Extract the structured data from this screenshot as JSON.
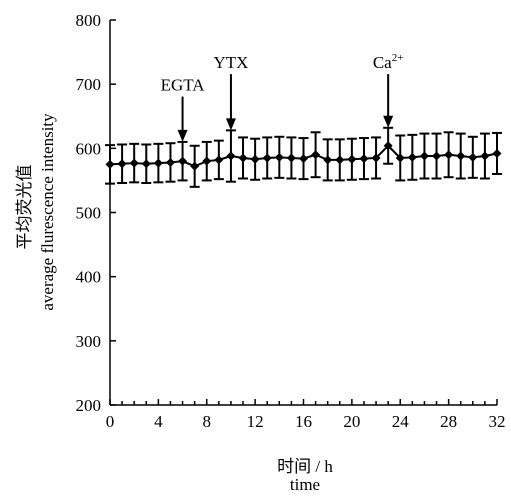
{
  "chart_data": {
    "type": "line",
    "ylabel_cn": "平均荧光值",
    "ylabel_en": "average flurescence intensity",
    "xlabel_cn": "时间 / h",
    "xlabel_en": "time",
    "xlim": [
      0,
      32
    ],
    "ylim": [
      200,
      800
    ],
    "x_ticks": [
      0,
      4,
      8,
      12,
      16,
      20,
      24,
      28,
      32
    ],
    "y_ticks": [
      200,
      300,
      400,
      500,
      600,
      700,
      800
    ],
    "x": [
      0,
      1,
      2,
      3,
      4,
      5,
      6,
      7,
      8,
      9,
      10,
      11,
      12,
      13,
      14,
      15,
      16,
      17,
      18,
      19,
      20,
      21,
      22,
      23,
      24,
      25,
      26,
      27,
      28,
      29,
      30,
      31,
      32
    ],
    "values": [
      575,
      576,
      577,
      576,
      577,
      578,
      580,
      572,
      580,
      582,
      588,
      585,
      583,
      585,
      586,
      585,
      584,
      590,
      582,
      582,
      583,
      584,
      585,
      604,
      585,
      586,
      588,
      588,
      590,
      588,
      586,
      588,
      592
    ],
    "error": [
      30,
      30,
      30,
      30,
      30,
      30,
      30,
      32,
      30,
      30,
      40,
      32,
      32,
      32,
      32,
      32,
      32,
      35,
      32,
      32,
      32,
      32,
      32,
      28,
      35,
      35,
      35,
      35,
      35,
      35,
      32,
      35,
      32
    ],
    "annotations": [
      {
        "label": "EGTA",
        "x": 6,
        "label_y": 690,
        "arrow_to": 610
      },
      {
        "label": "YTX",
        "x": 10,
        "label_y": 725,
        "arrow_to": 628
      },
      {
        "label": "Ca",
        "sup": "2+",
        "x": 23,
        "label_y": 725,
        "arrow_to": 632
      }
    ],
    "grid": false,
    "color": "#000000"
  }
}
